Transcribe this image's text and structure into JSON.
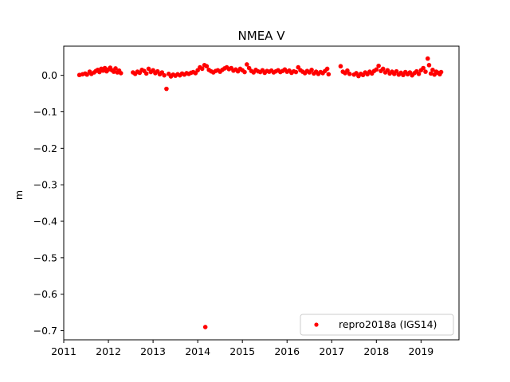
{
  "chart_data": {
    "type": "scatter",
    "title": "NMEA V",
    "xlabel": "",
    "ylabel": "m",
    "xlim": [
      2011.0,
      2019.85
    ],
    "ylim": [
      -0.725,
      0.08
    ],
    "x_ticks": [
      2011,
      2012,
      2013,
      2014,
      2015,
      2016,
      2017,
      2018,
      2019
    ],
    "x_tick_labels": [
      "2011",
      "2012",
      "2013",
      "2014",
      "2015",
      "2016",
      "2017",
      "2018",
      "2019"
    ],
    "y_ticks": [
      0.0,
      -0.1,
      -0.2,
      -0.3,
      -0.4,
      -0.5,
      -0.6,
      -0.7
    ],
    "y_tick_labels": [
      "0.0",
      "−0.1",
      "−0.2",
      "−0.3",
      "−0.4",
      "−0.5",
      "−0.6",
      "−0.7"
    ],
    "grid": false,
    "legend_position": "lower-right",
    "series": [
      {
        "name": "repro2018a (IGS14)",
        "color": "#ff0000",
        "marker": "circle",
        "points": [
          [
            2011.35,
            0.001
          ],
          [
            2011.42,
            0.003
          ],
          [
            2011.48,
            0.005
          ],
          [
            2011.52,
            0.002
          ],
          [
            2011.58,
            0.01
          ],
          [
            2011.62,
            0.004
          ],
          [
            2011.68,
            0.008
          ],
          [
            2011.72,
            0.012
          ],
          [
            2011.76,
            0.015
          ],
          [
            2011.8,
            0.009
          ],
          [
            2011.84,
            0.018
          ],
          [
            2011.88,
            0.013
          ],
          [
            2011.92,
            0.02
          ],
          [
            2011.96,
            0.011
          ],
          [
            2012.0,
            0.016
          ],
          [
            2012.04,
            0.021
          ],
          [
            2012.08,
            0.014
          ],
          [
            2012.12,
            0.01
          ],
          [
            2012.16,
            0.019
          ],
          [
            2012.2,
            0.008
          ],
          [
            2012.24,
            0.013
          ],
          [
            2012.28,
            0.006
          ],
          [
            2012.55,
            0.008
          ],
          [
            2012.6,
            0.004
          ],
          [
            2012.65,
            0.01
          ],
          [
            2012.7,
            0.007
          ],
          [
            2012.75,
            0.015
          ],
          [
            2012.8,
            0.012
          ],
          [
            2012.85,
            0.005
          ],
          [
            2012.9,
            0.018
          ],
          [
            2012.95,
            0.009
          ],
          [
            2013.0,
            0.014
          ],
          [
            2013.05,
            0.006
          ],
          [
            2013.1,
            0.011
          ],
          [
            2013.15,
            0.003
          ],
          [
            2013.2,
            0.008
          ],
          [
            2013.25,
            0.0
          ],
          [
            2013.3,
            -0.037
          ],
          [
            2013.35,
            0.004
          ],
          [
            2013.4,
            -0.003
          ],
          [
            2013.45,
            0.002
          ],
          [
            2013.5,
            -0.001
          ],
          [
            2013.55,
            0.003
          ],
          [
            2013.6,
            0.0
          ],
          [
            2013.65,
            0.005
          ],
          [
            2013.7,
            0.002
          ],
          [
            2013.75,
            0.006
          ],
          [
            2013.8,
            0.004
          ],
          [
            2013.85,
            0.007
          ],
          [
            2013.9,
            0.009
          ],
          [
            2013.95,
            0.006
          ],
          [
            2014.0,
            0.014
          ],
          [
            2014.05,
            0.022
          ],
          [
            2014.1,
            0.018
          ],
          [
            2014.15,
            0.028
          ],
          [
            2014.2,
            0.025
          ],
          [
            2014.25,
            0.015
          ],
          [
            2014.17,
            -0.69
          ],
          [
            2014.3,
            0.011
          ],
          [
            2014.35,
            0.008
          ],
          [
            2014.4,
            0.012
          ],
          [
            2014.45,
            0.014
          ],
          [
            2014.5,
            0.01
          ],
          [
            2014.55,
            0.015
          ],
          [
            2014.6,
            0.019
          ],
          [
            2014.65,
            0.022
          ],
          [
            2014.7,
            0.017
          ],
          [
            2014.75,
            0.02
          ],
          [
            2014.8,
            0.013
          ],
          [
            2014.85,
            0.016
          ],
          [
            2014.9,
            0.011
          ],
          [
            2014.95,
            0.018
          ],
          [
            2015.0,
            0.014
          ],
          [
            2015.05,
            0.009
          ],
          [
            2015.1,
            0.03
          ],
          [
            2015.15,
            0.02
          ],
          [
            2015.2,
            0.012
          ],
          [
            2015.25,
            0.008
          ],
          [
            2015.3,
            0.015
          ],
          [
            2015.35,
            0.011
          ],
          [
            2015.4,
            0.009
          ],
          [
            2015.45,
            0.014
          ],
          [
            2015.5,
            0.007
          ],
          [
            2015.55,
            0.012
          ],
          [
            2015.6,
            0.01
          ],
          [
            2015.65,
            0.013
          ],
          [
            2015.7,
            0.008
          ],
          [
            2015.75,
            0.011
          ],
          [
            2015.8,
            0.014
          ],
          [
            2015.85,
            0.009
          ],
          [
            2015.9,
            0.012
          ],
          [
            2015.95,
            0.016
          ],
          [
            2016.0,
            0.01
          ],
          [
            2016.05,
            0.013
          ],
          [
            2016.1,
            0.007
          ],
          [
            2016.15,
            0.011
          ],
          [
            2016.2,
            0.009
          ],
          [
            2016.25,
            0.022
          ],
          [
            2016.3,
            0.014
          ],
          [
            2016.35,
            0.01
          ],
          [
            2016.4,
            0.006
          ],
          [
            2016.45,
            0.012
          ],
          [
            2016.5,
            0.008
          ],
          [
            2016.55,
            0.015
          ],
          [
            2016.6,
            0.005
          ],
          [
            2016.65,
            0.01
          ],
          [
            2016.7,
            0.004
          ],
          [
            2016.75,
            0.009
          ],
          [
            2016.8,
            0.006
          ],
          [
            2016.85,
            0.012
          ],
          [
            2016.9,
            0.018
          ],
          [
            2016.93,
            0.003
          ],
          [
            2017.2,
            0.025
          ],
          [
            2017.25,
            0.01
          ],
          [
            2017.3,
            0.006
          ],
          [
            2017.35,
            0.013
          ],
          [
            2017.4,
            0.004
          ],
          [
            2017.5,
            0.002
          ],
          [
            2017.55,
            0.006
          ],
          [
            2017.6,
            -0.002
          ],
          [
            2017.65,
            0.004
          ],
          [
            2017.7,
            0.001
          ],
          [
            2017.75,
            0.008
          ],
          [
            2017.8,
            0.003
          ],
          [
            2017.85,
            0.01
          ],
          [
            2017.9,
            0.005
          ],
          [
            2017.95,
            0.012
          ],
          [
            2018.0,
            0.016
          ],
          [
            2018.05,
            0.026
          ],
          [
            2018.1,
            0.012
          ],
          [
            2018.15,
            0.018
          ],
          [
            2018.2,
            0.008
          ],
          [
            2018.25,
            0.014
          ],
          [
            2018.3,
            0.005
          ],
          [
            2018.35,
            0.01
          ],
          [
            2018.4,
            0.004
          ],
          [
            2018.45,
            0.011
          ],
          [
            2018.5,
            0.002
          ],
          [
            2018.55,
            0.007
          ],
          [
            2018.6,
            0.001
          ],
          [
            2018.65,
            0.009
          ],
          [
            2018.7,
            0.003
          ],
          [
            2018.75,
            0.008
          ],
          [
            2018.8,
            0.0
          ],
          [
            2018.85,
            0.006
          ],
          [
            2018.9,
            0.011
          ],
          [
            2018.95,
            0.004
          ],
          [
            2019.0,
            0.014
          ],
          [
            2019.05,
            0.02
          ],
          [
            2019.1,
            0.01
          ],
          [
            2019.15,
            0.046
          ],
          [
            2019.18,
            0.028
          ],
          [
            2019.22,
            0.005
          ],
          [
            2019.26,
            0.015
          ],
          [
            2019.3,
            0.002
          ],
          [
            2019.34,
            0.01
          ],
          [
            2019.38,
            0.007
          ],
          [
            2019.42,
            0.003
          ],
          [
            2019.45,
            0.009
          ]
        ]
      }
    ]
  }
}
